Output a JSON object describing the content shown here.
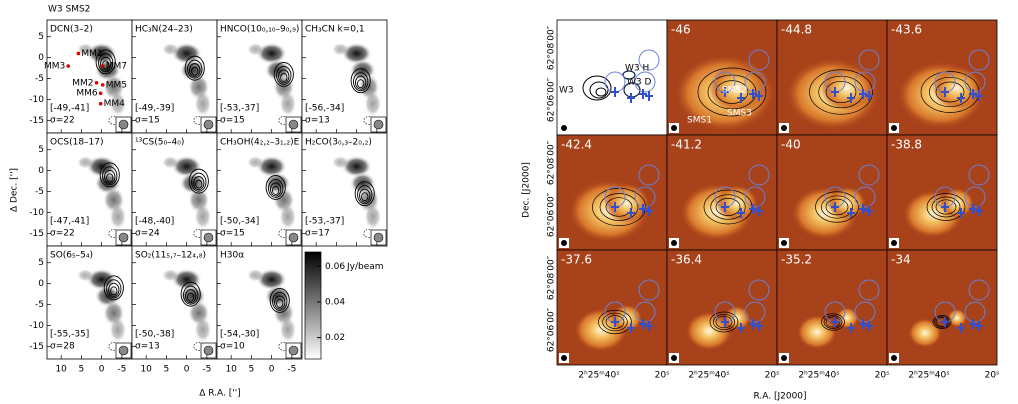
{
  "left_figure": {
    "title": "W3 SMS2",
    "panels": [
      {
        "label": "DCN(3–2)",
        "range": "[-49,-41]",
        "sigma": "σ=22"
      },
      {
        "label": "HC₃N(24–23)",
        "range": "[-49,-39]",
        "sigma": "σ=15"
      },
      {
        "label": "HNCO(10₀,₁₀–9₀,₉)",
        "range": "[-53,-37]",
        "sigma": "σ=15"
      },
      {
        "label": "CH₃CN k=0,1",
        "range": "[-56,-34]",
        "sigma": "σ=13"
      },
      {
        "label": "OCS(18–17)",
        "range": "[-47,-41]",
        "sigma": "σ=22"
      },
      {
        "label": "¹³CS(5₀–4₀)",
        "range": "[-48,-40]",
        "sigma": "σ=24"
      },
      {
        "label": "CH₃OH(4₂,₂–3₁,₂)E",
        "range": "[-50,-34]",
        "sigma": "σ=15"
      },
      {
        "label": "H₂CO(3₀,₃–2₀,₂)",
        "range": "[-53,-37]",
        "sigma": "σ=17"
      },
      {
        "label": "SO(6₅–5₄)",
        "range": "[-55,-35]",
        "sigma": "σ=28"
      },
      {
        "label": "SO₂(11₅,₇–12₄,₈)",
        "range": "[-50,-38]",
        "sigma": "σ=13"
      },
      {
        "label": "H30α",
        "range": "[-54,-30]",
        "sigma": "σ=10"
      }
    ],
    "mm_labels": [
      "MM3",
      "MM1",
      "MM7",
      "MM2",
      "MM5",
      "MM6",
      "MM4"
    ],
    "x_axis_label": "Δ R.A. ['']",
    "y_axis_label": "Δ Dec. ['']",
    "xlim": [
      13.5,
      -7.5
    ],
    "ylim": [
      -18,
      9
    ],
    "xticks": [
      10,
      5,
      0,
      -5
    ],
    "yticks": [
      5,
      0,
      -5,
      -10,
      -15
    ],
    "colorbar": {
      "label": "Jy/beam",
      "lim": [
        0.008,
        0.068
      ],
      "ticks": [
        0.06,
        0.04,
        0.02
      ]
    }
  },
  "right_figure": {
    "channels": [
      "-46",
      "-44.8",
      "-43.6",
      "-42.4",
      "-41.2",
      "-40",
      "-38.8",
      "-37.6",
      "-36.4",
      "-35.2",
      "-34"
    ],
    "overview_labels": [
      "W3 H",
      "W3 D",
      "W3"
    ],
    "source_labels": [
      "SMS2",
      "SMS1",
      "SMS3"
    ],
    "x_axis_label": "R.A. [J2000]",
    "y_axis_label": "Dec. [J2000]",
    "xtick_labels": [
      "2ʰ25ᵐ40ˢ",
      "20ˢ"
    ],
    "ytick_labels": [
      "62°06′00″",
      "62°08′00″"
    ]
  }
}
